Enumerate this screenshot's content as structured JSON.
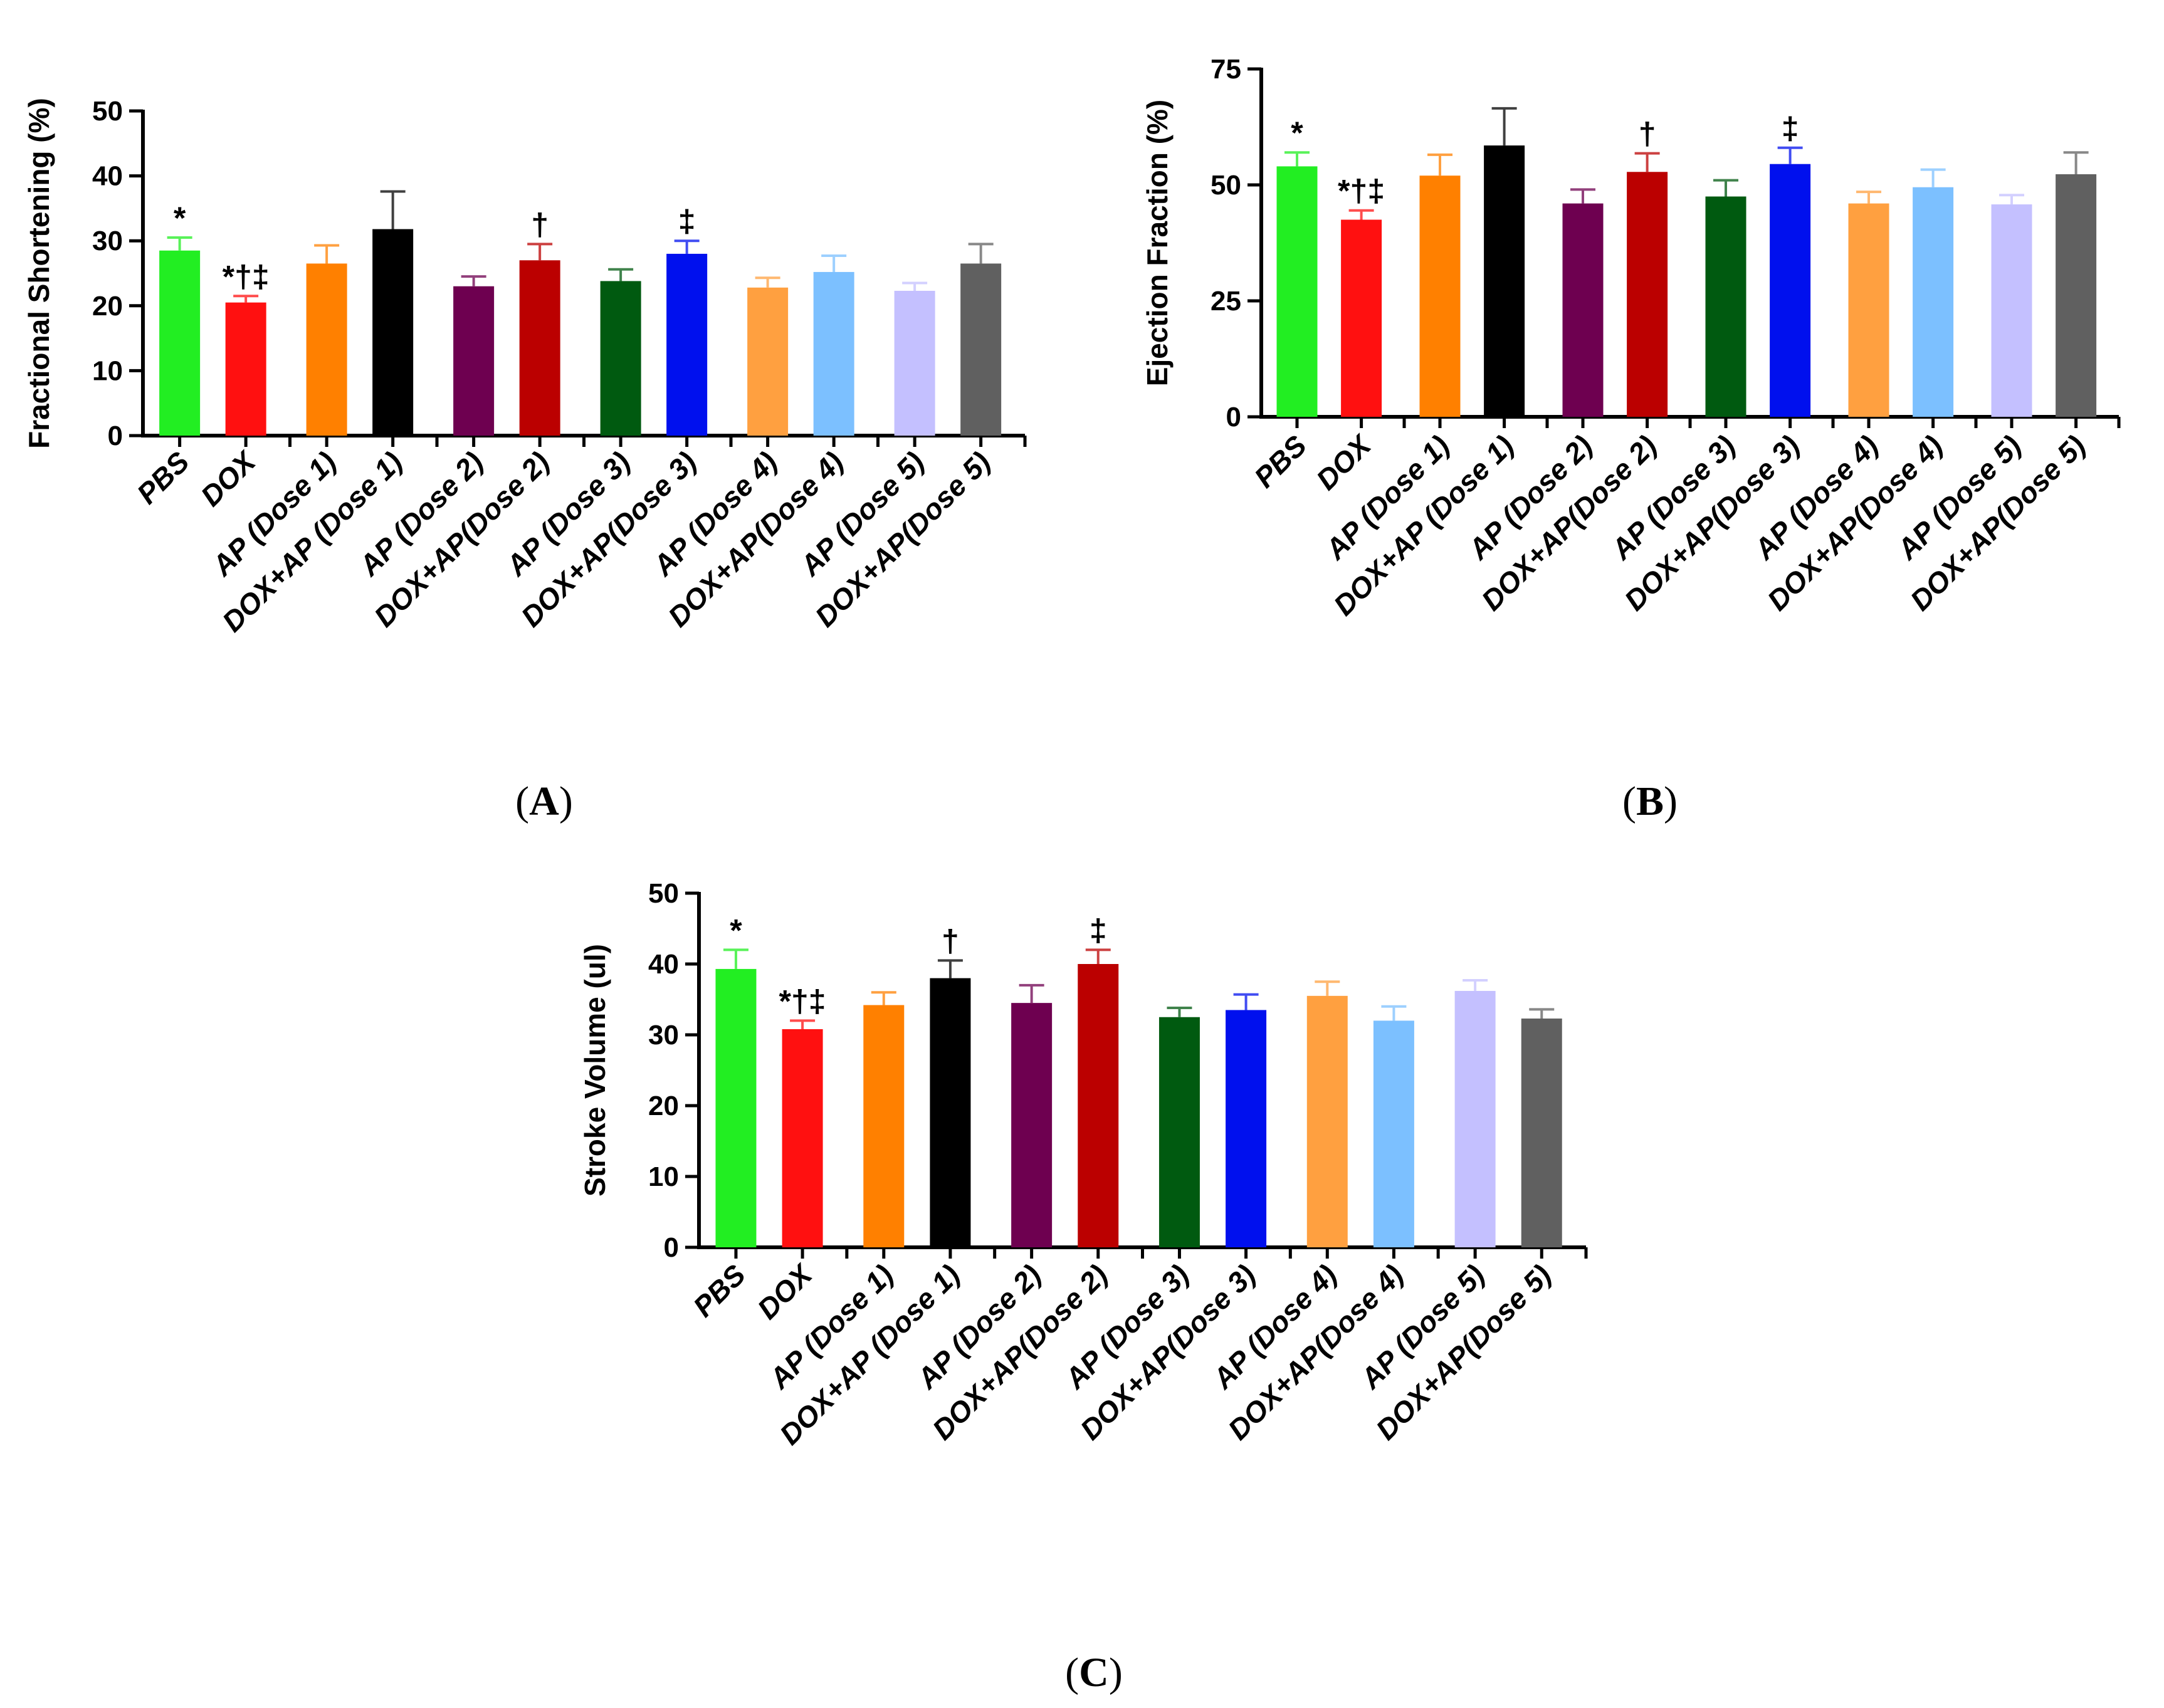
{
  "chart_data": [
    {
      "type": "bar",
      "panel_label": "A",
      "ylabel": "Fractional Shortening (%)",
      "ylim": [
        0,
        50
      ],
      "yticks": [
        0,
        10,
        20,
        30,
        40,
        50
      ],
      "categories": [
        "PBS",
        "DOX",
        "AP (Dose 1)",
        "DOX+AP (Dose 1)",
        "AP (Dose 2)",
        "DOX+AP(Dose 2)",
        "AP (Dose 3)",
        "DOX+AP(Dose 3)",
        "AP (Dose 4)",
        "DOX+AP(Dose 4)",
        "AP (Dose 5)",
        "DOX+AP(Dose 5)"
      ],
      "values": [
        28.5,
        20.5,
        26.5,
        31.8,
        23.0,
        27.0,
        23.8,
        28.0,
        22.8,
        25.2,
        22.3,
        26.5
      ],
      "errors": [
        2.0,
        1.0,
        2.8,
        5.8,
        1.5,
        2.5,
        1.8,
        2.0,
        1.5,
        2.5,
        1.2,
        3.0
      ],
      "annotations": [
        "*",
        "*†‡",
        "",
        "",
        "",
        "†",
        "",
        "‡",
        "",
        "",
        "",
        ""
      ],
      "colors": [
        "#22ee22",
        "#ff1010",
        "#ff8000",
        "#000000",
        "#6e0050",
        "#bb0000",
        "#005a10",
        "#0010ee",
        "#ffa040",
        "#7cc0ff",
        "#c4c0ff",
        "#606060"
      ],
      "grid": false
    },
    {
      "type": "bar",
      "panel_label": "B",
      "ylabel": "Ejection Fraction (%)",
      "ylim": [
        0,
        75
      ],
      "yticks": [
        0,
        25,
        50,
        75
      ],
      "categories": [
        "PBS",
        "DOX",
        "AP (Dose 1)",
        "DOX+AP (Dose 1)",
        "AP (Dose 2)",
        "DOX+AP(Dose 2)",
        "AP (Dose 3)",
        "DOX+AP(Dose 3)",
        "AP (Dose 4)",
        "DOX+AP(Dose 4)",
        "AP (Dose 5)",
        "DOX+AP(Dose 5)"
      ],
      "values": [
        54.0,
        42.5,
        52.0,
        58.5,
        46.0,
        52.8,
        47.5,
        54.5,
        46.0,
        49.5,
        45.8,
        52.3
      ],
      "errors": [
        3.0,
        2.0,
        4.5,
        8.0,
        3.0,
        4.0,
        3.5,
        3.5,
        2.5,
        3.8,
        2.0,
        4.7
      ],
      "annotations": [
        "*",
        "*†‡",
        "",
        "",
        "",
        "†",
        "",
        "‡",
        "",
        "",
        "",
        ""
      ],
      "colors": [
        "#22ee22",
        "#ff1010",
        "#ff8000",
        "#000000",
        "#6e0050",
        "#bb0000",
        "#005a10",
        "#0010ee",
        "#ffa040",
        "#7cc0ff",
        "#c4c0ff",
        "#606060"
      ],
      "grid": false
    },
    {
      "type": "bar",
      "panel_label": "C",
      "ylabel": "Stroke Volume (ul)",
      "ylim": [
        0,
        50
      ],
      "yticks": [
        0,
        10,
        20,
        30,
        40,
        50
      ],
      "categories": [
        "PBS",
        "DOX",
        "AP (Dose 1)",
        "DOX+AP (Dose 1)",
        "AP (Dose 2)",
        "DOX+AP(Dose 2)",
        "AP (Dose 3)",
        "DOX+AP(Dose 3)",
        "AP (Dose 4)",
        "DOX+AP(Dose 4)",
        "AP (Dose 5)",
        "DOX+AP(Dose 5)"
      ],
      "values": [
        39.3,
        30.8,
        34.2,
        38.0,
        34.5,
        40.0,
        32.5,
        33.5,
        35.5,
        32.0,
        36.2,
        32.3
      ],
      "errors": [
        2.7,
        1.2,
        1.8,
        2.5,
        2.5,
        2.0,
        1.3,
        2.2,
        2.0,
        2.0,
        1.5,
        1.3
      ],
      "annotations": [
        "*",
        "*†‡",
        "",
        "†",
        "",
        "‡",
        "",
        "",
        "",
        "",
        "",
        ""
      ],
      "colors": [
        "#22ee22",
        "#ff1010",
        "#ff8000",
        "#000000",
        "#6e0050",
        "#bb0000",
        "#005a10",
        "#0010ee",
        "#ffa040",
        "#7cc0ff",
        "#c4c0ff",
        "#606060"
      ],
      "grid": false
    }
  ]
}
